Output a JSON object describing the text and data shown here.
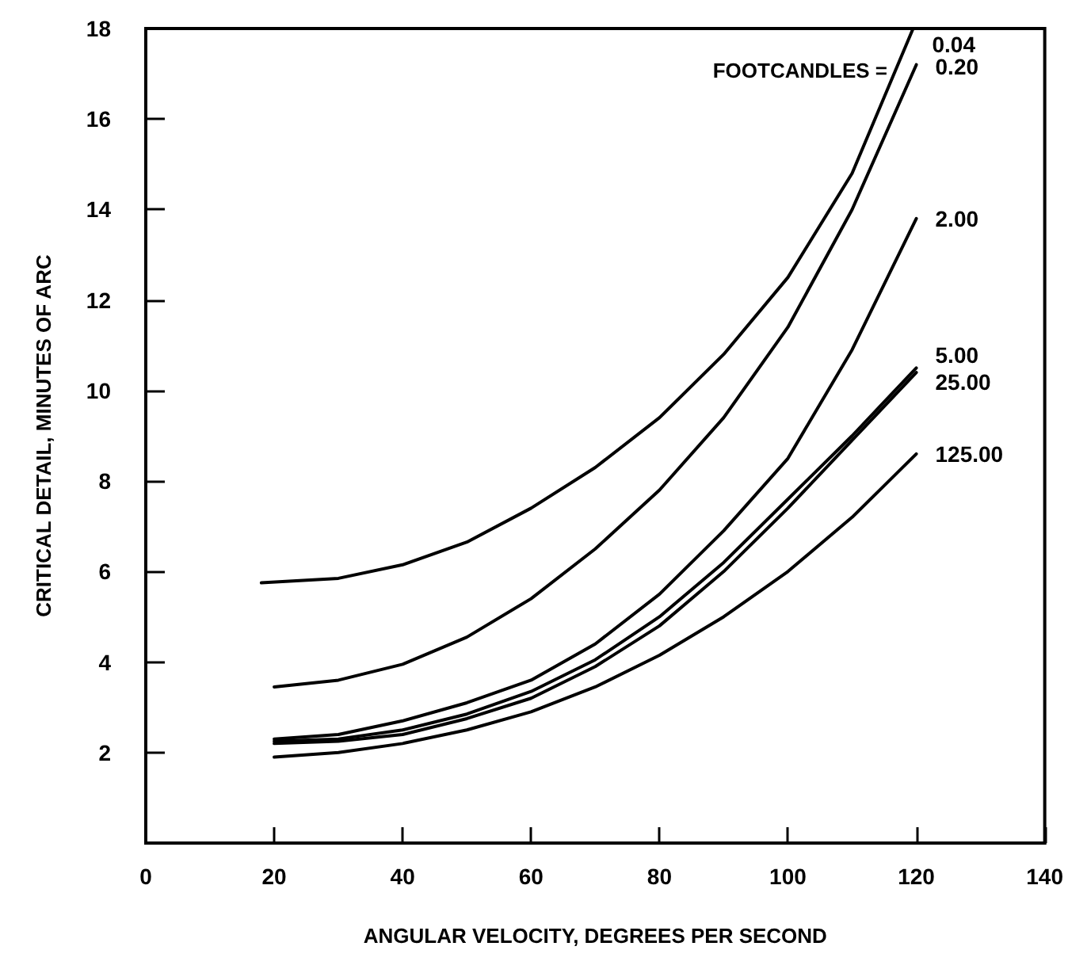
{
  "chart_data": {
    "type": "line",
    "xlabel": "ANGULAR VELOCITY, DEGREES PER SECOND",
    "ylabel": "CRITICAL DETAIL, MINUTES OF ARC",
    "legend_title": "FOOTCANDLES =",
    "x": [
      20,
      30,
      40,
      50,
      60,
      70,
      80,
      90,
      100,
      110,
      120
    ],
    "series": [
      {
        "name": "0.04",
        "color": "#000000",
        "x": [
          18,
          30,
          40,
          50,
          60,
          70,
          80,
          90,
          100,
          110,
          119.5
        ],
        "values": [
          5.75,
          5.85,
          6.15,
          6.65,
          7.4,
          8.3,
          9.4,
          10.8,
          12.5,
          14.8,
          18
        ]
      },
      {
        "name": "0.20",
        "color": "#000000",
        "values": [
          3.45,
          3.6,
          3.95,
          4.55,
          5.4,
          6.5,
          7.8,
          9.4,
          11.4,
          14.0,
          17.2
        ]
      },
      {
        "name": "2.00",
        "color": "#000000",
        "values": [
          2.3,
          2.4,
          2.7,
          3.1,
          3.6,
          4.4,
          5.5,
          6.9,
          8.5,
          10.9,
          13.8
        ]
      },
      {
        "name": "5.00",
        "color": "#000000",
        "values": [
          2.25,
          2.3,
          2.5,
          2.85,
          3.35,
          4.05,
          5.0,
          6.2,
          7.6,
          9.0,
          10.5
        ]
      },
      {
        "name": "25.00",
        "color": "#000000",
        "values": [
          2.2,
          2.25,
          2.4,
          2.75,
          3.2,
          3.9,
          4.8,
          6.0,
          7.4,
          8.9,
          10.4
        ]
      },
      {
        "name": "125.00",
        "color": "#000000",
        "values": [
          1.9,
          2.0,
          2.2,
          2.5,
          2.9,
          3.45,
          4.15,
          5.0,
          6.0,
          7.2,
          8.6
        ]
      }
    ],
    "xlim": [
      0,
      140
    ],
    "xticks": [
      0,
      20,
      40,
      60,
      80,
      100,
      120,
      140
    ],
    "ylim": [
      0,
      18
    ],
    "yticks": [
      2,
      4,
      6,
      8,
      10,
      12,
      14,
      16,
      18
    ],
    "grid": false,
    "legend": false,
    "marker": "none",
    "line_style": "solid"
  }
}
